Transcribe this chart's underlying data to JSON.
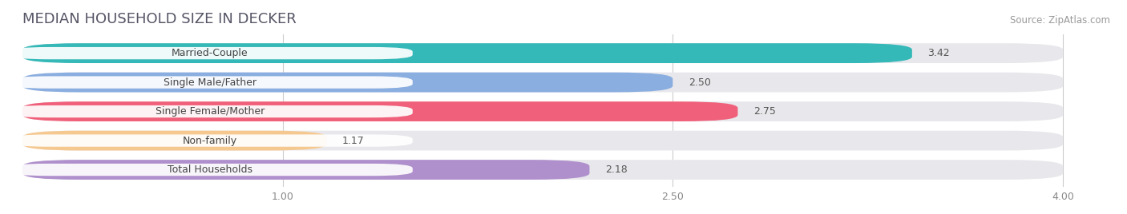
{
  "title": "MEDIAN HOUSEHOLD SIZE IN DECKER",
  "source": "Source: ZipAtlas.com",
  "categories": [
    "Married-Couple",
    "Single Male/Father",
    "Single Female/Mother",
    "Non-family",
    "Total Households"
  ],
  "values": [
    3.42,
    2.5,
    2.75,
    1.17,
    2.18
  ],
  "bar_colors": [
    "#35b8b8",
    "#8aaee0",
    "#f0607a",
    "#f5c890",
    "#b090cc"
  ],
  "background_color": "#ffffff",
  "bar_bg_color": "#e8e8ec",
  "xlim_data": [
    0.0,
    4.2
  ],
  "x_min": 0.0,
  "x_max": 4.0,
  "xticks": [
    1.0,
    2.5,
    4.0
  ],
  "title_fontsize": 13,
  "label_fontsize": 9,
  "value_fontsize": 9,
  "source_fontsize": 8.5,
  "bar_height": 0.68,
  "bar_gap": 0.32
}
